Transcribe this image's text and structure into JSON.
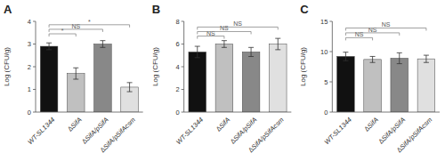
{
  "chart_data": [
    {
      "type": "bar",
      "title": "A",
      "categories": [
        "WT-SL1344",
        "∆SifA",
        "∆SifA/pSifA",
        "∆SifA/pSifAcsm"
      ],
      "values": [
        2.9,
        1.7,
        3.0,
        1.1
      ],
      "errors": [
        0.15,
        0.25,
        0.15,
        0.2
      ],
      "colors": [
        "#111111",
        "#c0c0c0",
        "#888888",
        "#e0e0e0"
      ],
      "y_label": "Log (CFU/g)",
      "ylim": [
        0,
        4
      ],
      "yticks": [
        0,
        1,
        2,
        3,
        4
      ],
      "annotations": [
        {
          "x1": "WT-SL1344",
          "x2": "∆SifA",
          "y": 3.45,
          "label": "*"
        },
        {
          "x1": "WT-SL1344",
          "x2": "∆SifA/pSifA",
          "y": 3.65,
          "label": "NS"
        },
        {
          "x1": "WT-SL1344",
          "x2": "∆SifA/pSifAcsm",
          "y": 3.85,
          "label": "*"
        }
      ]
    },
    {
      "type": "bar",
      "title": "B",
      "categories": [
        "WT-SL1344",
        "∆SifA",
        "∆SifA/pSifA",
        "∆SifA/pSifAcsm"
      ],
      "values": [
        5.3,
        6.0,
        5.3,
        6.0
      ],
      "errors": [
        0.5,
        0.3,
        0.4,
        0.5
      ],
      "colors": [
        "#111111",
        "#c0c0c0",
        "#888888",
        "#e0e0e0"
      ],
      "y_label": "Log (CFU/g)",
      "ylim": [
        0,
        8
      ],
      "yticks": [
        0,
        2,
        4,
        6,
        8
      ],
      "annotations": [
        {
          "x1": "WT-SL1344",
          "x2": "∆SifA",
          "y": 6.7,
          "label": "NS"
        },
        {
          "x1": "WT-SL1344",
          "x2": "∆SifA/pSifA",
          "y": 7.1,
          "label": "NS"
        },
        {
          "x1": "WT-SL1344",
          "x2": "∆SifA/pSifAcsm",
          "y": 7.5,
          "label": "NS"
        }
      ]
    },
    {
      "type": "bar",
      "title": "C",
      "categories": [
        "WT-SL1344",
        "∆SifA",
        "∆SifA/pSifA",
        "∆SifA/pSifAcsm"
      ],
      "values": [
        9.2,
        8.7,
        8.9,
        8.8
      ],
      "errors": [
        0.7,
        0.5,
        0.9,
        0.6
      ],
      "colors": [
        "#111111",
        "#c0c0c0",
        "#888888",
        "#e0e0e0"
      ],
      "y_label": "Log (CFU/g)",
      "ylim": [
        0,
        15
      ],
      "yticks": [
        0,
        5,
        10,
        15
      ],
      "annotations": [
        {
          "x1": "WT-SL1344",
          "x2": "∆SifA",
          "y": 12.3,
          "label": "NS"
        },
        {
          "x1": "WT-SL1344",
          "x2": "∆SifA/pSifA",
          "y": 13.1,
          "label": "NS"
        },
        {
          "x1": "WT-SL1344",
          "x2": "∆SifA/pSifAcsm",
          "y": 13.9,
          "label": "NS"
        }
      ]
    }
  ]
}
